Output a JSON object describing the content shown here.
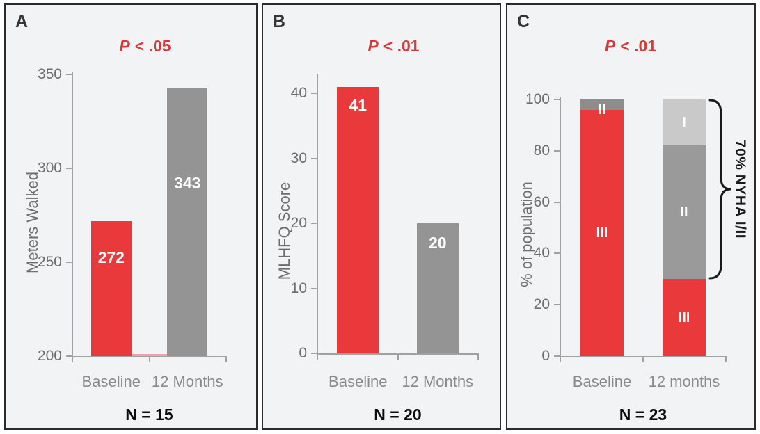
{
  "colors": {
    "bar_red": "#E9393B",
    "bar_gray": "#949494",
    "bar_light_gray": "#C9C9C9",
    "seg_dark_gray": "#8D8D8D",
    "seg_mid_gray": "#9A9A9A",
    "p_value_red": "#D23B3C",
    "axis_gray": "#A1A1A1",
    "tick_label_gray": "#6E6E6E",
    "category_label_gray": "#8A8A8A",
    "n_label_black": "#0D0D0D",
    "panel_bg": "#F2F3F5",
    "panel_border": "#2B2B2B",
    "value_label_white": "#FFFFFF",
    "connector_pink": "#EFA6A7",
    "annotation_black": "#1A1A1A"
  },
  "chart_data": [
    {
      "type": "bar",
      "panel": "A",
      "title": "P < .05",
      "title_symbol": "P",
      "title_rest": "< .05",
      "categories": [
        "Baseline",
        "12 Months"
      ],
      "values": [
        272,
        343
      ],
      "bar_colors": [
        "bar_red",
        "bar_gray"
      ],
      "xlabel": "",
      "ylabel": "Meters Walked",
      "ylim": [
        200,
        350
      ],
      "yticks": [
        200,
        250,
        300,
        350
      ],
      "grid": false,
      "legend": "none",
      "n_label": "N = 15"
    },
    {
      "type": "bar",
      "panel": "B",
      "title": "P < .01",
      "title_symbol": "P",
      "title_rest": "< .01",
      "categories": [
        "Baseline",
        "12 Months"
      ],
      "values": [
        41,
        20
      ],
      "bar_colors": [
        "bar_red",
        "bar_gray"
      ],
      "xlabel": "",
      "ylabel": "MLHFQ Score",
      "ylim": [
        0,
        43
      ],
      "yticks": [
        0,
        10,
        20,
        30,
        40
      ],
      "grid": false,
      "legend": "none",
      "n_label": "N = 20"
    },
    {
      "type": "stacked-bar",
      "panel": "C",
      "title": "P < .01",
      "title_symbol": "P",
      "title_rest": "< .01",
      "categories": [
        "Baseline",
        "12 months"
      ],
      "series": [
        {
          "name": "III",
          "values": [
            96,
            30
          ],
          "color": "bar_red"
        },
        {
          "name": "II",
          "values": [
            4,
            52
          ],
          "colors": [
            "seg_dark_gray",
            "seg_mid_gray"
          ]
        },
        {
          "name": "I",
          "values": [
            0,
            18
          ],
          "color": "bar_light_gray"
        }
      ],
      "xlabel": "",
      "ylabel": "% of population",
      "ylim": [
        0,
        100
      ],
      "yticks": [
        0,
        20,
        40,
        60,
        80,
        100
      ],
      "grid": false,
      "legend": "none",
      "annotation": "70% NYHA I/II",
      "n_label": "N = 23"
    }
  ]
}
